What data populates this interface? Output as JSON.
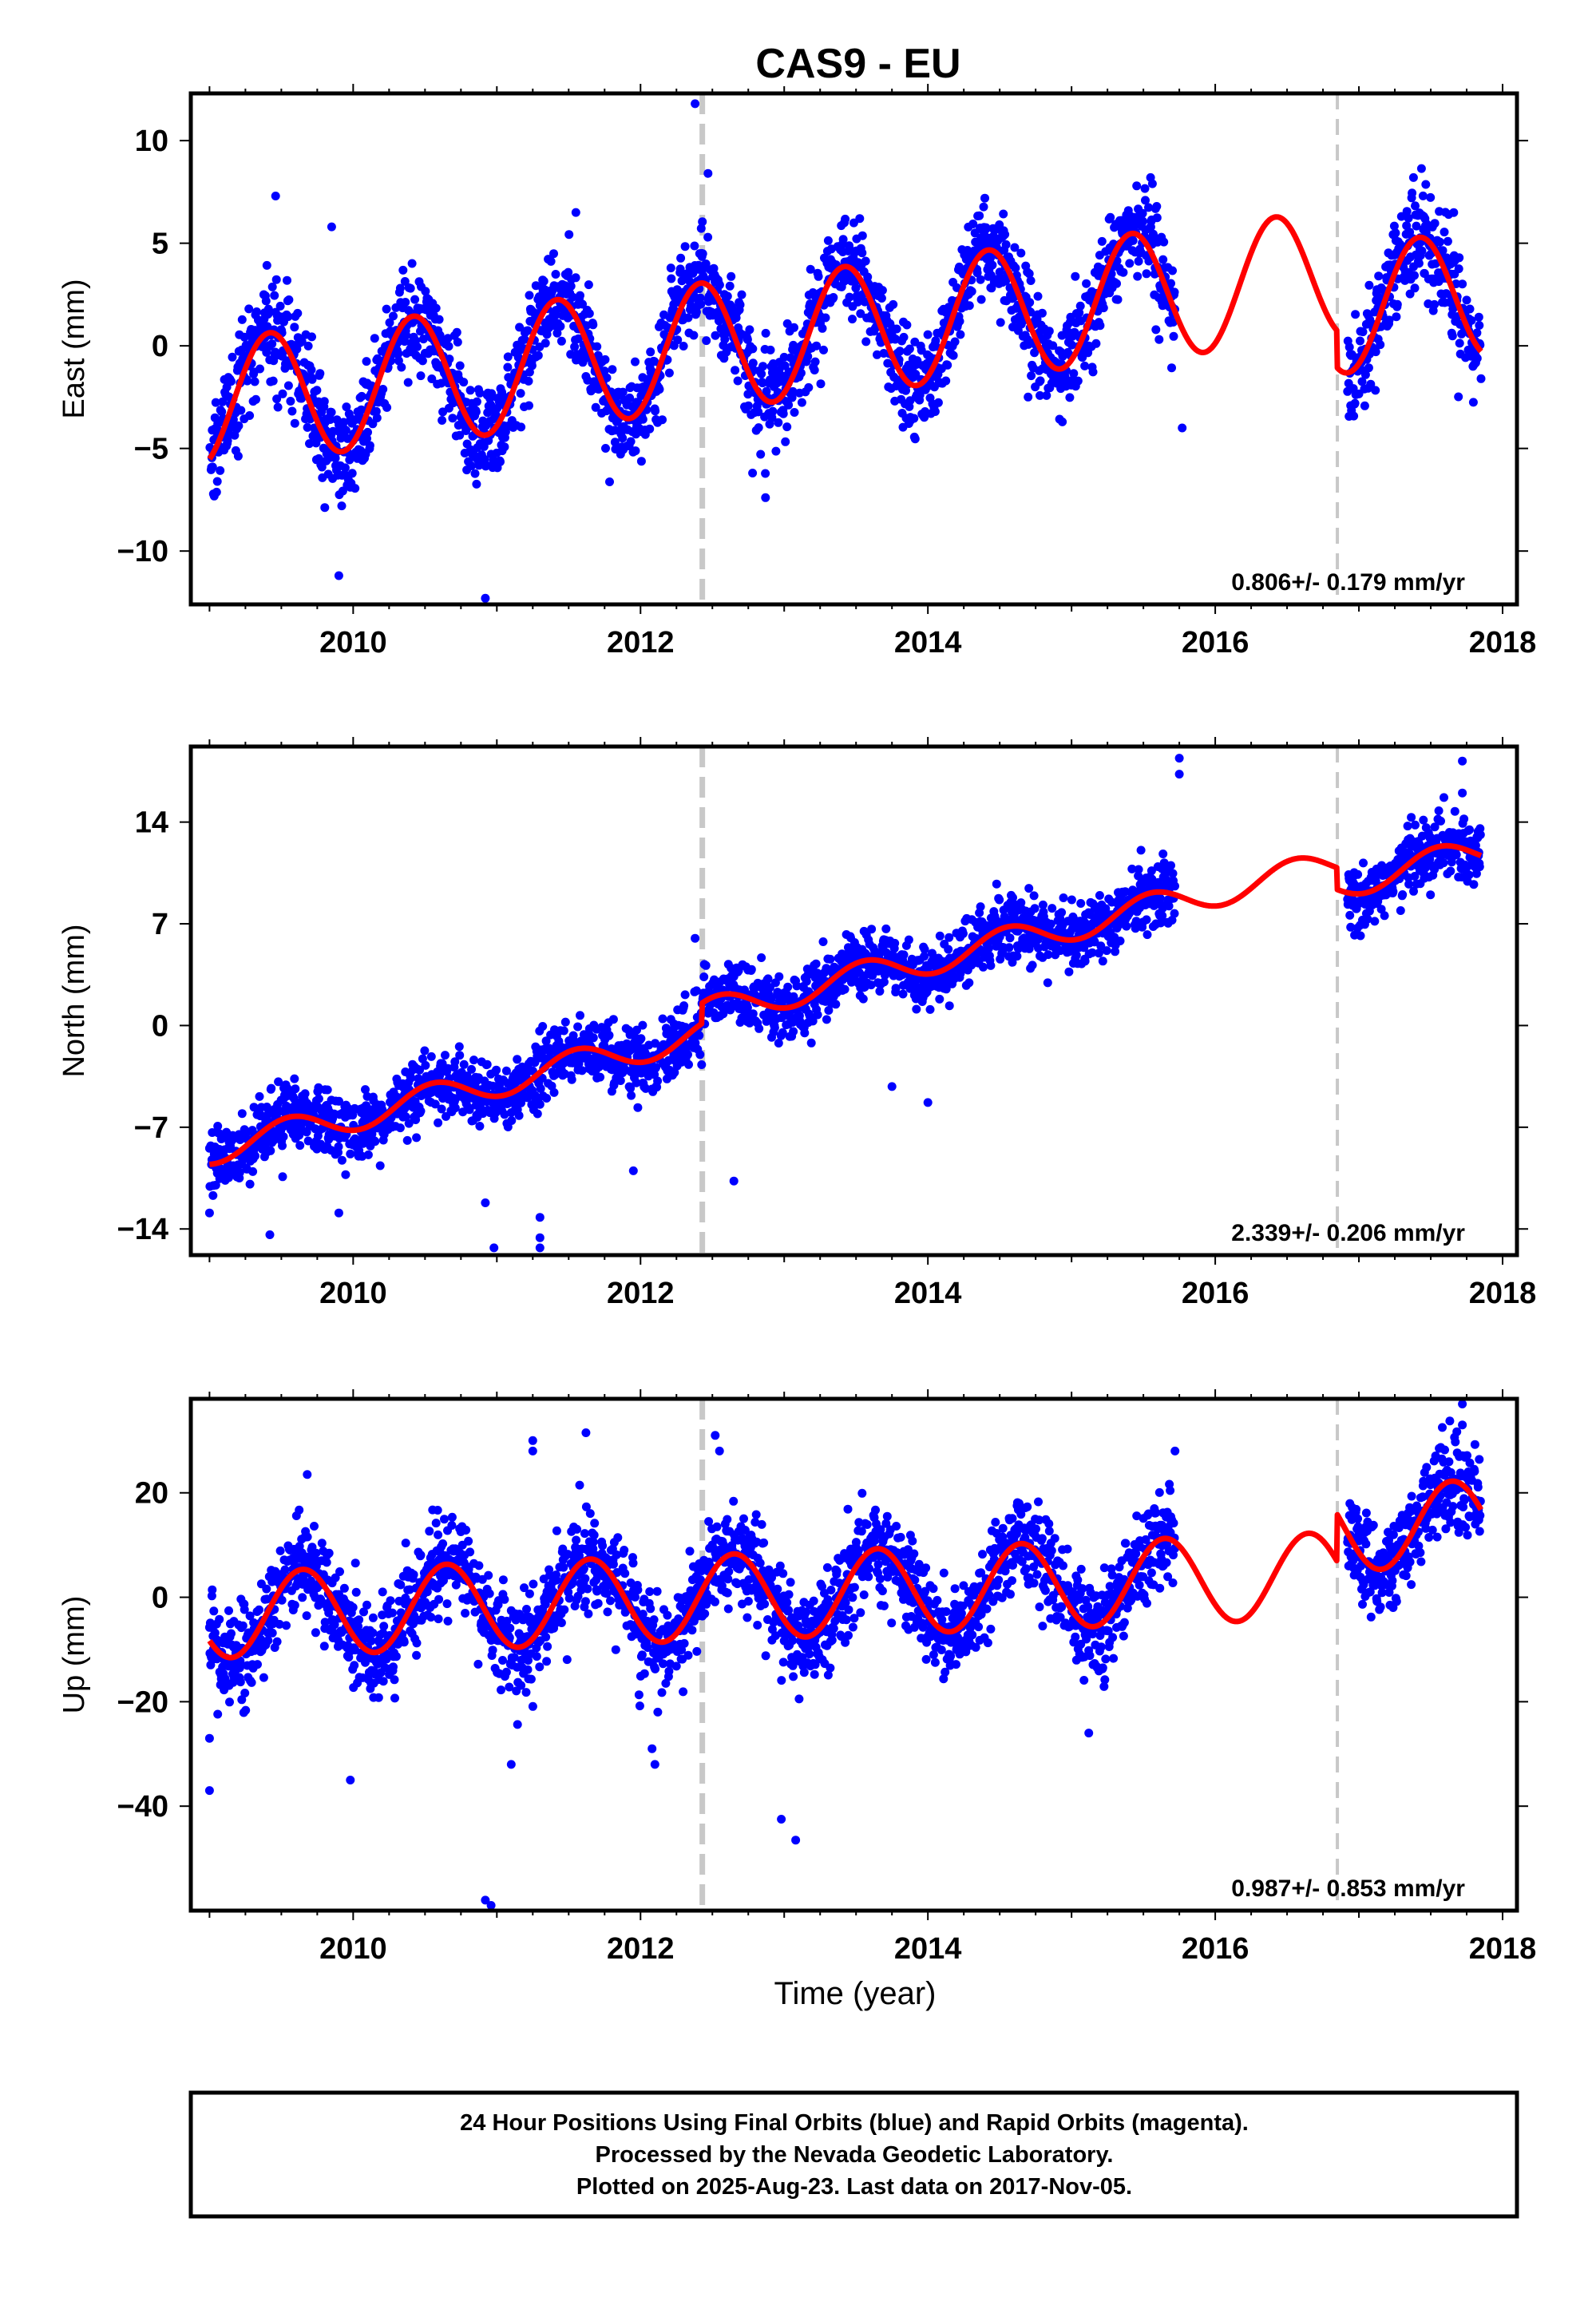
{
  "title": "CAS9 - EU",
  "xlabel": "Time (year)",
  "colors": {
    "final_orbits": "#0000ff",
    "model": "#ff0000",
    "offset_line": "#c8c8c8"
  },
  "footer": {
    "line1": "24 Hour Positions Using Final Orbits (blue) and Rapid Orbits (magenta).",
    "line2": "Processed by the Nevada Geodetic Laboratory.",
    "line3": "Plotted on 2025-Aug-23. Last data on 2017-Nov-05."
  },
  "chart_data": [
    {
      "type": "scatter",
      "ylabel": "East (mm)",
      "xlim": [
        2008.87,
        2018.1
      ],
      "ylim": [
        -12.6,
        12.3
      ],
      "xticks": [
        "2010",
        "2012",
        "2014",
        "2016",
        "2018"
      ],
      "yticks": [
        "10",
        "5",
        "0",
        "-5",
        "-10"
      ],
      "ytick_values": [
        10,
        5,
        0,
        -5,
        -10
      ],
      "grid": false,
      "annotation": "0.806+/- 0.179 mm/yr",
      "vertical_lines": [
        2012.43,
        2016.85
      ],
      "data_range": [
        2009.0,
        2017.85
      ],
      "data_gap": [
        2015.72,
        2016.92
      ],
      "model": {
        "intercept_at_2009": -2.8,
        "rate": 0.806,
        "annual_amplitude": 3.1,
        "peak_phase": 0.42,
        "offsets": [
          {
            "t": 2016.85,
            "dy": -1.8
          }
        ]
      },
      "scatter_noise": 1.2,
      "series": [
        {
          "name": "Final Orbits",
          "values": "daily positions 2009.0–2017.85 (noisy about model)"
        },
        {
          "name": "Model fit",
          "values": "linear + annual + offsets"
        }
      ],
      "outliers": [
        [
          2012.38,
          11.8
        ],
        [
          2012.47,
          8.4
        ],
        [
          2009.9,
          -11.2
        ],
        [
          2010.92,
          -12.3
        ],
        [
          2012.87,
          -7.4
        ],
        [
          2012.78,
          -6.2
        ],
        [
          2009.92,
          -7.8
        ],
        [
          2009.46,
          7.3
        ],
        [
          2009.85,
          5.8
        ],
        [
          2011.55,
          6.5
        ],
        [
          2015.77,
          -4.0
        ],
        [
          2015.55,
          8.2
        ],
        [
          2017.38,
          8.2
        ],
        [
          2017.85,
          -1.6
        ]
      ]
    },
    {
      "type": "scatter",
      "ylabel": "North (mm)",
      "xlim": [
        2008.87,
        2018.1
      ],
      "ylim": [
        -15.8,
        19.2
      ],
      "xticks": [
        "2010",
        "2012",
        "2014",
        "2016",
        "2018"
      ],
      "yticks": [
        "14",
        "7",
        "0",
        "-7",
        "-14"
      ],
      "ytick_values": [
        14,
        7,
        0,
        -7,
        -14
      ],
      "grid": false,
      "annotation": "2.339+/- 0.206 mm/yr",
      "vertical_lines": [
        2012.43,
        2016.85
      ],
      "data_range": [
        2009.0,
        2017.85
      ],
      "data_gap": [
        2015.72,
        2016.92
      ],
      "model": {
        "intercept_at_2009": -8.6,
        "rate": 2.339,
        "annual_amplitude": 1.0,
        "peak_phase": 0.55,
        "offsets": [
          {
            "t": 2012.43,
            "dy": 1.4
          },
          {
            "t": 2016.85,
            "dy": -1.5
          }
        ]
      },
      "scatter_noise": 1.1,
      "series": [
        {
          "name": "Final Orbits",
          "values": "daily positions 2009.0–2017.85 (noisy about model)"
        },
        {
          "name": "Model fit",
          "values": "linear + annual + offsets"
        }
      ],
      "outliers": [
        [
          2009.0,
          -12.9
        ],
        [
          2009.42,
          -14.4
        ],
        [
          2009.9,
          -12.9
        ],
        [
          2010.98,
          -15.3
        ],
        [
          2011.3,
          -14.6
        ],
        [
          2011.3,
          -15.3
        ],
        [
          2010.92,
          -12.2
        ],
        [
          2011.3,
          -13.2
        ],
        [
          2011.95,
          -10.0
        ],
        [
          2012.38,
          6.0
        ],
        [
          2012.65,
          -10.7
        ],
        [
          2014.0,
          -5.3
        ],
        [
          2013.75,
          -4.2
        ],
        [
          2015.75,
          18.4
        ],
        [
          2015.75,
          17.3
        ],
        [
          2017.72,
          18.2
        ],
        [
          2017.72,
          16.0
        ],
        [
          2017.55,
          14.2
        ]
      ]
    },
    {
      "type": "scatter",
      "ylabel": "Up (mm)",
      "xlim": [
        2008.87,
        2018.1
      ],
      "ylim": [
        -60,
        38
      ],
      "xticks": [
        "2010",
        "2012",
        "2014",
        "2016",
        "2018"
      ],
      "yticks": [
        "20",
        "0",
        "-20",
        "-40"
      ],
      "ytick_values": [
        20,
        0,
        -20,
        -40
      ],
      "grid": false,
      "annotation": "0.987+/- 0.853 mm/yr",
      "vertical_lines": [
        2012.43,
        2016.85
      ],
      "data_range": [
        2009.0,
        2017.85
      ],
      "data_gap": [
        2015.72,
        2016.92
      ],
      "model": {
        "intercept_at_2009": -3.5,
        "rate": 0.987,
        "annual_amplitude": 8.2,
        "peak_phase": 0.65,
        "offsets": [
          {
            "t": 2016.85,
            "dy": 9.0
          }
        ]
      },
      "scatter_noise": 4.5,
      "series": [
        {
          "name": "Final Orbits",
          "values": "daily positions 2009.0–2017.85 (noisy about model)"
        },
        {
          "name": "Model fit",
          "values": "linear + annual + offsets"
        }
      ],
      "outliers": [
        [
          2009.0,
          -37
        ],
        [
          2009.0,
          -27
        ],
        [
          2009.68,
          23.5
        ],
        [
          2009.98,
          -35
        ],
        [
          2010.92,
          -58
        ],
        [
          2010.96,
          -59
        ],
        [
          2011.25,
          30
        ],
        [
          2011.25,
          28
        ],
        [
          2011.62,
          31.5
        ],
        [
          2011.1,
          -32
        ],
        [
          2012.1,
          -32
        ],
        [
          2012.08,
          -29
        ],
        [
          2012.52,
          31
        ],
        [
          2012.55,
          28
        ],
        [
          2012.98,
          -42.5
        ],
        [
          2013.08,
          -46.5
        ],
        [
          2012.12,
          -22
        ],
        [
          2015.12,
          -26
        ],
        [
          2015.72,
          28
        ],
        [
          2017.72,
          37
        ],
        [
          2017.72,
          33
        ]
      ]
    }
  ]
}
